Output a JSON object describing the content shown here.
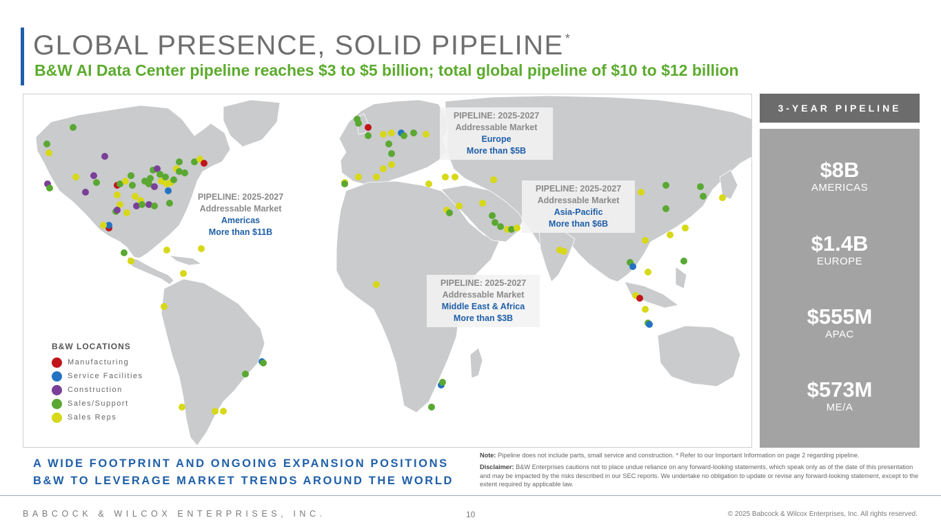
{
  "slide": {
    "title": "GLOBAL PRESENCE, SOLID PIPELINE",
    "title_mark": "*",
    "subtitle": "B&W AI Data Center pipeline reaches $3 to $5 billion; total global pipeline of $10 to $12 billion"
  },
  "callouts": {
    "americas": {
      "title": "PIPELINE: 2025-2027",
      "sub": "Addressable Market",
      "region": "Americas",
      "value": "More than $11B"
    },
    "europe": {
      "title": "PIPELINE: 2025-2027",
      "sub": "Addressable Market",
      "region": "Europe",
      "value": "More than $5B"
    },
    "apac": {
      "title": "PIPELINE: 2025-2027",
      "sub": "Addressable Market",
      "region": "Asia-Pacific",
      "value": "More than $6B"
    },
    "mea": {
      "title": "PIPELINE: 2025-2027",
      "sub": "Addressable Market",
      "region": "Middle East & Africa",
      "value": "More than $3B"
    }
  },
  "legend": {
    "title": "B&W LOCATIONS",
    "items": [
      {
        "label": "Manufacturing",
        "color": "#c0151b"
      },
      {
        "label": "Service Facilities",
        "color": "#2373c2"
      },
      {
        "label": "Construction",
        "color": "#7a3f98"
      },
      {
        "label": "Sales/Support",
        "color": "#5aa832"
      },
      {
        "label": "Sales Reps",
        "color": "#d7d818"
      }
    ]
  },
  "pipeline": {
    "header": "3-YEAR PIPELINE",
    "items": [
      {
        "value": "$8B",
        "label": "AMERICAS"
      },
      {
        "value": "$1.4B",
        "label": "EUROPE"
      },
      {
        "value": "$555M",
        "label": "APAC"
      },
      {
        "value": "$573M",
        "label": "ME/A"
      }
    ]
  },
  "footprint": {
    "line1": "A WIDE FOOTPRINT AND ONGOING EXPANSION POSITIONS",
    "line2": "B&W TO LEVERAGE MARKET TRENDS AROUND THE WORLD"
  },
  "notes": {
    "note_label": "Note:",
    "note_text": " Pipeline does not include parts, small service and construction. * Refer to our Important Information on page 2 regarding pipeline.",
    "disclaimer_label": "Disclaimer:",
    "disclaimer_text": " B&W Enterprises cautions not to place undue reliance on any forward-looking statements, which speak only as of the date of this presentation and may be impacted by the risks described in our SEC reports. We undertake no obligation to update or revise any forward-looking statement, except to the extent required by applicable law."
  },
  "footer": {
    "company": "BABCOCK & WILCOX ENTERPRISES, INC.",
    "page": "10",
    "copyright": "© 2025 Babcock & Wilcox Enterprises, Inc. All rights reserved."
  },
  "colors": {
    "manufacturing": "#c0151b",
    "service": "#2373c2",
    "construction": "#7a3f98",
    "sales_support": "#5aa832",
    "sales_reps": "#d7d818"
  }
}
